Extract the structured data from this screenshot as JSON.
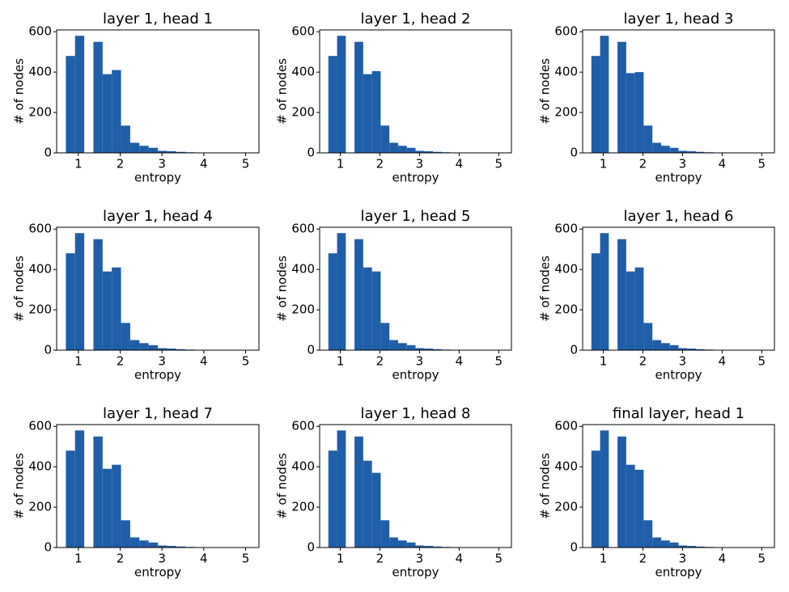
{
  "chart_data": [
    {
      "type": "histogram",
      "title": "layer 1, head 1",
      "xlabel": "entropy",
      "ylabel": "# of nodes",
      "color": "#1f5ea8",
      "bins": [
        0.7,
        0.92,
        1.14,
        1.36,
        1.58,
        1.8,
        2.02,
        2.24,
        2.46,
        2.68,
        2.9,
        3.12,
        3.34,
        3.56,
        3.78,
        4,
        4.22,
        4.44,
        4.66,
        4.88,
        5.1
      ],
      "values": [
        480,
        580,
        0,
        550,
        390,
        410,
        135,
        50,
        35,
        25,
        10,
        8,
        5,
        3,
        2,
        2,
        1,
        1,
        0,
        1
      ],
      "xlim": [
        0.48,
        5.32
      ],
      "ylim": [
        0,
        609
      ],
      "xticks": [
        1,
        2,
        3,
        4,
        5
      ],
      "yticks": [
        0,
        200,
        400,
        600
      ]
    },
    {
      "type": "histogram",
      "title": "layer 1, head 2",
      "xlabel": "entropy",
      "ylabel": "# of nodes",
      "color": "#1f5ea8",
      "bins": [
        0.7,
        0.92,
        1.14,
        1.36,
        1.58,
        1.8,
        2.02,
        2.24,
        2.46,
        2.68,
        2.9,
        3.12,
        3.34,
        3.56,
        3.78,
        4,
        4.22,
        4.44,
        4.66,
        4.88,
        5.1
      ],
      "values": [
        480,
        580,
        0,
        550,
        390,
        405,
        135,
        50,
        35,
        25,
        10,
        8,
        5,
        3,
        2,
        2,
        1,
        1,
        0,
        1
      ],
      "xlim": [
        0.48,
        5.32
      ],
      "ylim": [
        0,
        609
      ],
      "xticks": [
        1,
        2,
        3,
        4,
        5
      ],
      "yticks": [
        0,
        200,
        400,
        600
      ]
    },
    {
      "type": "histogram",
      "title": "layer 1, head 3",
      "xlabel": "entropy",
      "ylabel": "# of nodes",
      "color": "#1f5ea8",
      "bins": [
        0.7,
        0.92,
        1.14,
        1.36,
        1.58,
        1.8,
        2.02,
        2.24,
        2.46,
        2.68,
        2.9,
        3.12,
        3.34,
        3.56,
        3.78,
        4,
        4.22,
        4.44,
        4.66,
        4.88,
        5.1
      ],
      "values": [
        480,
        580,
        0,
        550,
        395,
        400,
        135,
        50,
        35,
        25,
        10,
        8,
        5,
        3,
        2,
        2,
        1,
        1,
        0,
        1
      ],
      "xlim": [
        0.48,
        5.32
      ],
      "ylim": [
        0,
        609
      ],
      "xticks": [
        1,
        2,
        3,
        4,
        5
      ],
      "yticks": [
        0,
        200,
        400,
        600
      ]
    },
    {
      "type": "histogram",
      "title": "layer 1, head 4",
      "xlabel": "entropy",
      "ylabel": "# of nodes",
      "color": "#1f5ea8",
      "bins": [
        0.7,
        0.92,
        1.14,
        1.36,
        1.58,
        1.8,
        2.02,
        2.24,
        2.46,
        2.68,
        2.9,
        3.12,
        3.34,
        3.56,
        3.78,
        4,
        4.22,
        4.44,
        4.66,
        4.88,
        5.1
      ],
      "values": [
        480,
        580,
        0,
        550,
        390,
        410,
        135,
        50,
        35,
        25,
        10,
        8,
        5,
        3,
        2,
        2,
        1,
        1,
        0,
        1
      ],
      "xlim": [
        0.48,
        5.32
      ],
      "ylim": [
        0,
        609
      ],
      "xticks": [
        1,
        2,
        3,
        4,
        5
      ],
      "yticks": [
        0,
        200,
        400,
        600
      ]
    },
    {
      "type": "histogram",
      "title": "layer 1, head 5",
      "xlabel": "entropy",
      "ylabel": "# of nodes",
      "color": "#1f5ea8",
      "bins": [
        0.7,
        0.92,
        1.14,
        1.36,
        1.58,
        1.8,
        2.02,
        2.24,
        2.46,
        2.68,
        2.9,
        3.12,
        3.34,
        3.56,
        3.78,
        4,
        4.22,
        4.44,
        4.66,
        4.88,
        5.1
      ],
      "values": [
        480,
        580,
        0,
        550,
        410,
        390,
        135,
        50,
        35,
        25,
        10,
        8,
        5,
        3,
        2,
        2,
        1,
        1,
        0,
        1
      ],
      "xlim": [
        0.48,
        5.32
      ],
      "ylim": [
        0,
        609
      ],
      "xticks": [
        1,
        2,
        3,
        4,
        5
      ],
      "yticks": [
        0,
        200,
        400,
        600
      ]
    },
    {
      "type": "histogram",
      "title": "layer 1, head 6",
      "xlabel": "entropy",
      "ylabel": "# of nodes",
      "color": "#1f5ea8",
      "bins": [
        0.7,
        0.92,
        1.14,
        1.36,
        1.58,
        1.8,
        2.02,
        2.24,
        2.46,
        2.68,
        2.9,
        3.12,
        3.34,
        3.56,
        3.78,
        4,
        4.22,
        4.44,
        4.66,
        4.88,
        5.1
      ],
      "values": [
        480,
        580,
        0,
        550,
        390,
        410,
        135,
        50,
        35,
        25,
        10,
        8,
        5,
        3,
        2,
        2,
        1,
        1,
        0,
        1
      ],
      "xlim": [
        0.48,
        5.32
      ],
      "ylim": [
        0,
        609
      ],
      "xticks": [
        1,
        2,
        3,
        4,
        5
      ],
      "yticks": [
        0,
        200,
        400,
        600
      ]
    },
    {
      "type": "histogram",
      "title": "layer 1, head 7",
      "xlabel": "entropy",
      "ylabel": "# of nodes",
      "color": "#1f5ea8",
      "bins": [
        0.7,
        0.92,
        1.14,
        1.36,
        1.58,
        1.8,
        2.02,
        2.24,
        2.46,
        2.68,
        2.9,
        3.12,
        3.34,
        3.56,
        3.78,
        4,
        4.22,
        4.44,
        4.66,
        4.88,
        5.1
      ],
      "values": [
        480,
        580,
        0,
        550,
        390,
        410,
        135,
        50,
        35,
        25,
        10,
        8,
        5,
        3,
        2,
        2,
        1,
        1,
        0,
        1
      ],
      "xlim": [
        0.48,
        5.32
      ],
      "ylim": [
        0,
        609
      ],
      "xticks": [
        1,
        2,
        3,
        4,
        5
      ],
      "yticks": [
        0,
        200,
        400,
        600
      ]
    },
    {
      "type": "histogram",
      "title": "layer 1, head 8",
      "xlabel": "entropy",
      "ylabel": "# of nodes",
      "color": "#1f5ea8",
      "bins": [
        0.7,
        0.92,
        1.14,
        1.36,
        1.58,
        1.8,
        2.02,
        2.24,
        2.46,
        2.68,
        2.9,
        3.12,
        3.34,
        3.56,
        3.78,
        4,
        4.22,
        4.44,
        4.66,
        4.88,
        5.1
      ],
      "values": [
        480,
        580,
        0,
        550,
        430,
        370,
        135,
        50,
        35,
        25,
        10,
        8,
        5,
        3,
        2,
        2,
        1,
        1,
        0,
        1
      ],
      "xlim": [
        0.48,
        5.32
      ],
      "ylim": [
        0,
        609
      ],
      "xticks": [
        1,
        2,
        3,
        4,
        5
      ],
      "yticks": [
        0,
        200,
        400,
        600
      ]
    },
    {
      "type": "histogram",
      "title": "final layer, head 1",
      "xlabel": "entropy",
      "ylabel": "# of nodes",
      "color": "#1f5ea8",
      "bins": [
        0.7,
        0.92,
        1.14,
        1.36,
        1.58,
        1.8,
        2.02,
        2.24,
        2.46,
        2.68,
        2.9,
        3.12,
        3.34,
        3.56,
        3.78,
        4,
        4.22,
        4.44,
        4.66,
        4.88,
        5.1
      ],
      "values": [
        480,
        580,
        0,
        550,
        410,
        385,
        135,
        50,
        35,
        25,
        10,
        8,
        5,
        3,
        2,
        2,
        1,
        1,
        0,
        1
      ],
      "xlim": [
        0.48,
        5.32
      ],
      "ylim": [
        0,
        609
      ],
      "xticks": [
        1,
        2,
        3,
        4,
        5
      ],
      "yticks": [
        0,
        200,
        400,
        600
      ]
    }
  ]
}
